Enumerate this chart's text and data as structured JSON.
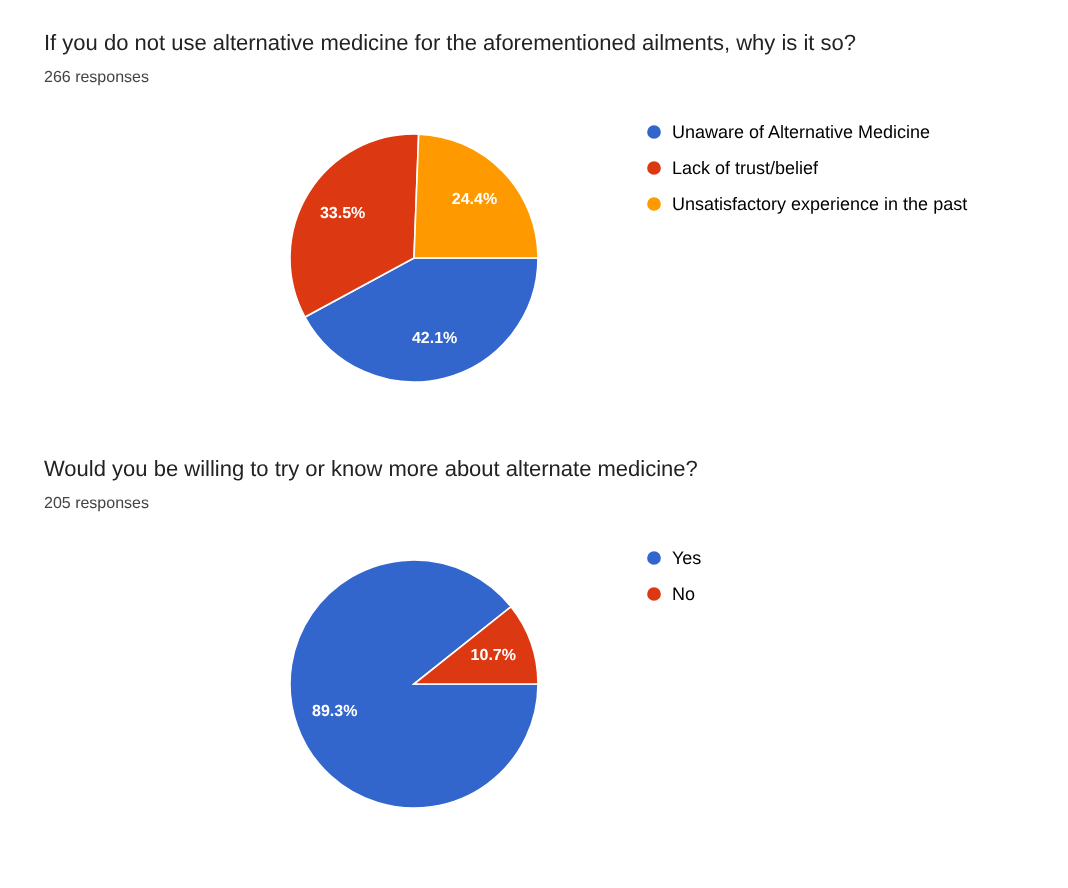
{
  "chart_data": [
    {
      "type": "pie",
      "title": "If you do not use alternative medicine for the aforementioned ailments, why is it so?",
      "subtitle": "266 responses",
      "categories": [
        "Unaware of Alternative Medicine",
        "Lack of trust/belief",
        "Unsatisfactory experience in the past"
      ],
      "values": [
        42.1,
        33.5,
        24.4
      ],
      "colors": [
        "#3366cc",
        "#dc3912",
        "#ff9900"
      ],
      "value_labels": [
        "42.1%",
        "33.5%",
        "24.4%"
      ],
      "legend": "top right"
    },
    {
      "type": "pie",
      "title": "Would you be willing to try or know more about alternate medicine?",
      "subtitle": "205 responses",
      "categories": [
        "Yes",
        "No"
      ],
      "values": [
        89.3,
        10.7
      ],
      "colors": [
        "#3366cc",
        "#dc3912"
      ],
      "value_labels": [
        "89.3%",
        "10.7%"
      ],
      "legend": "top right"
    }
  ]
}
